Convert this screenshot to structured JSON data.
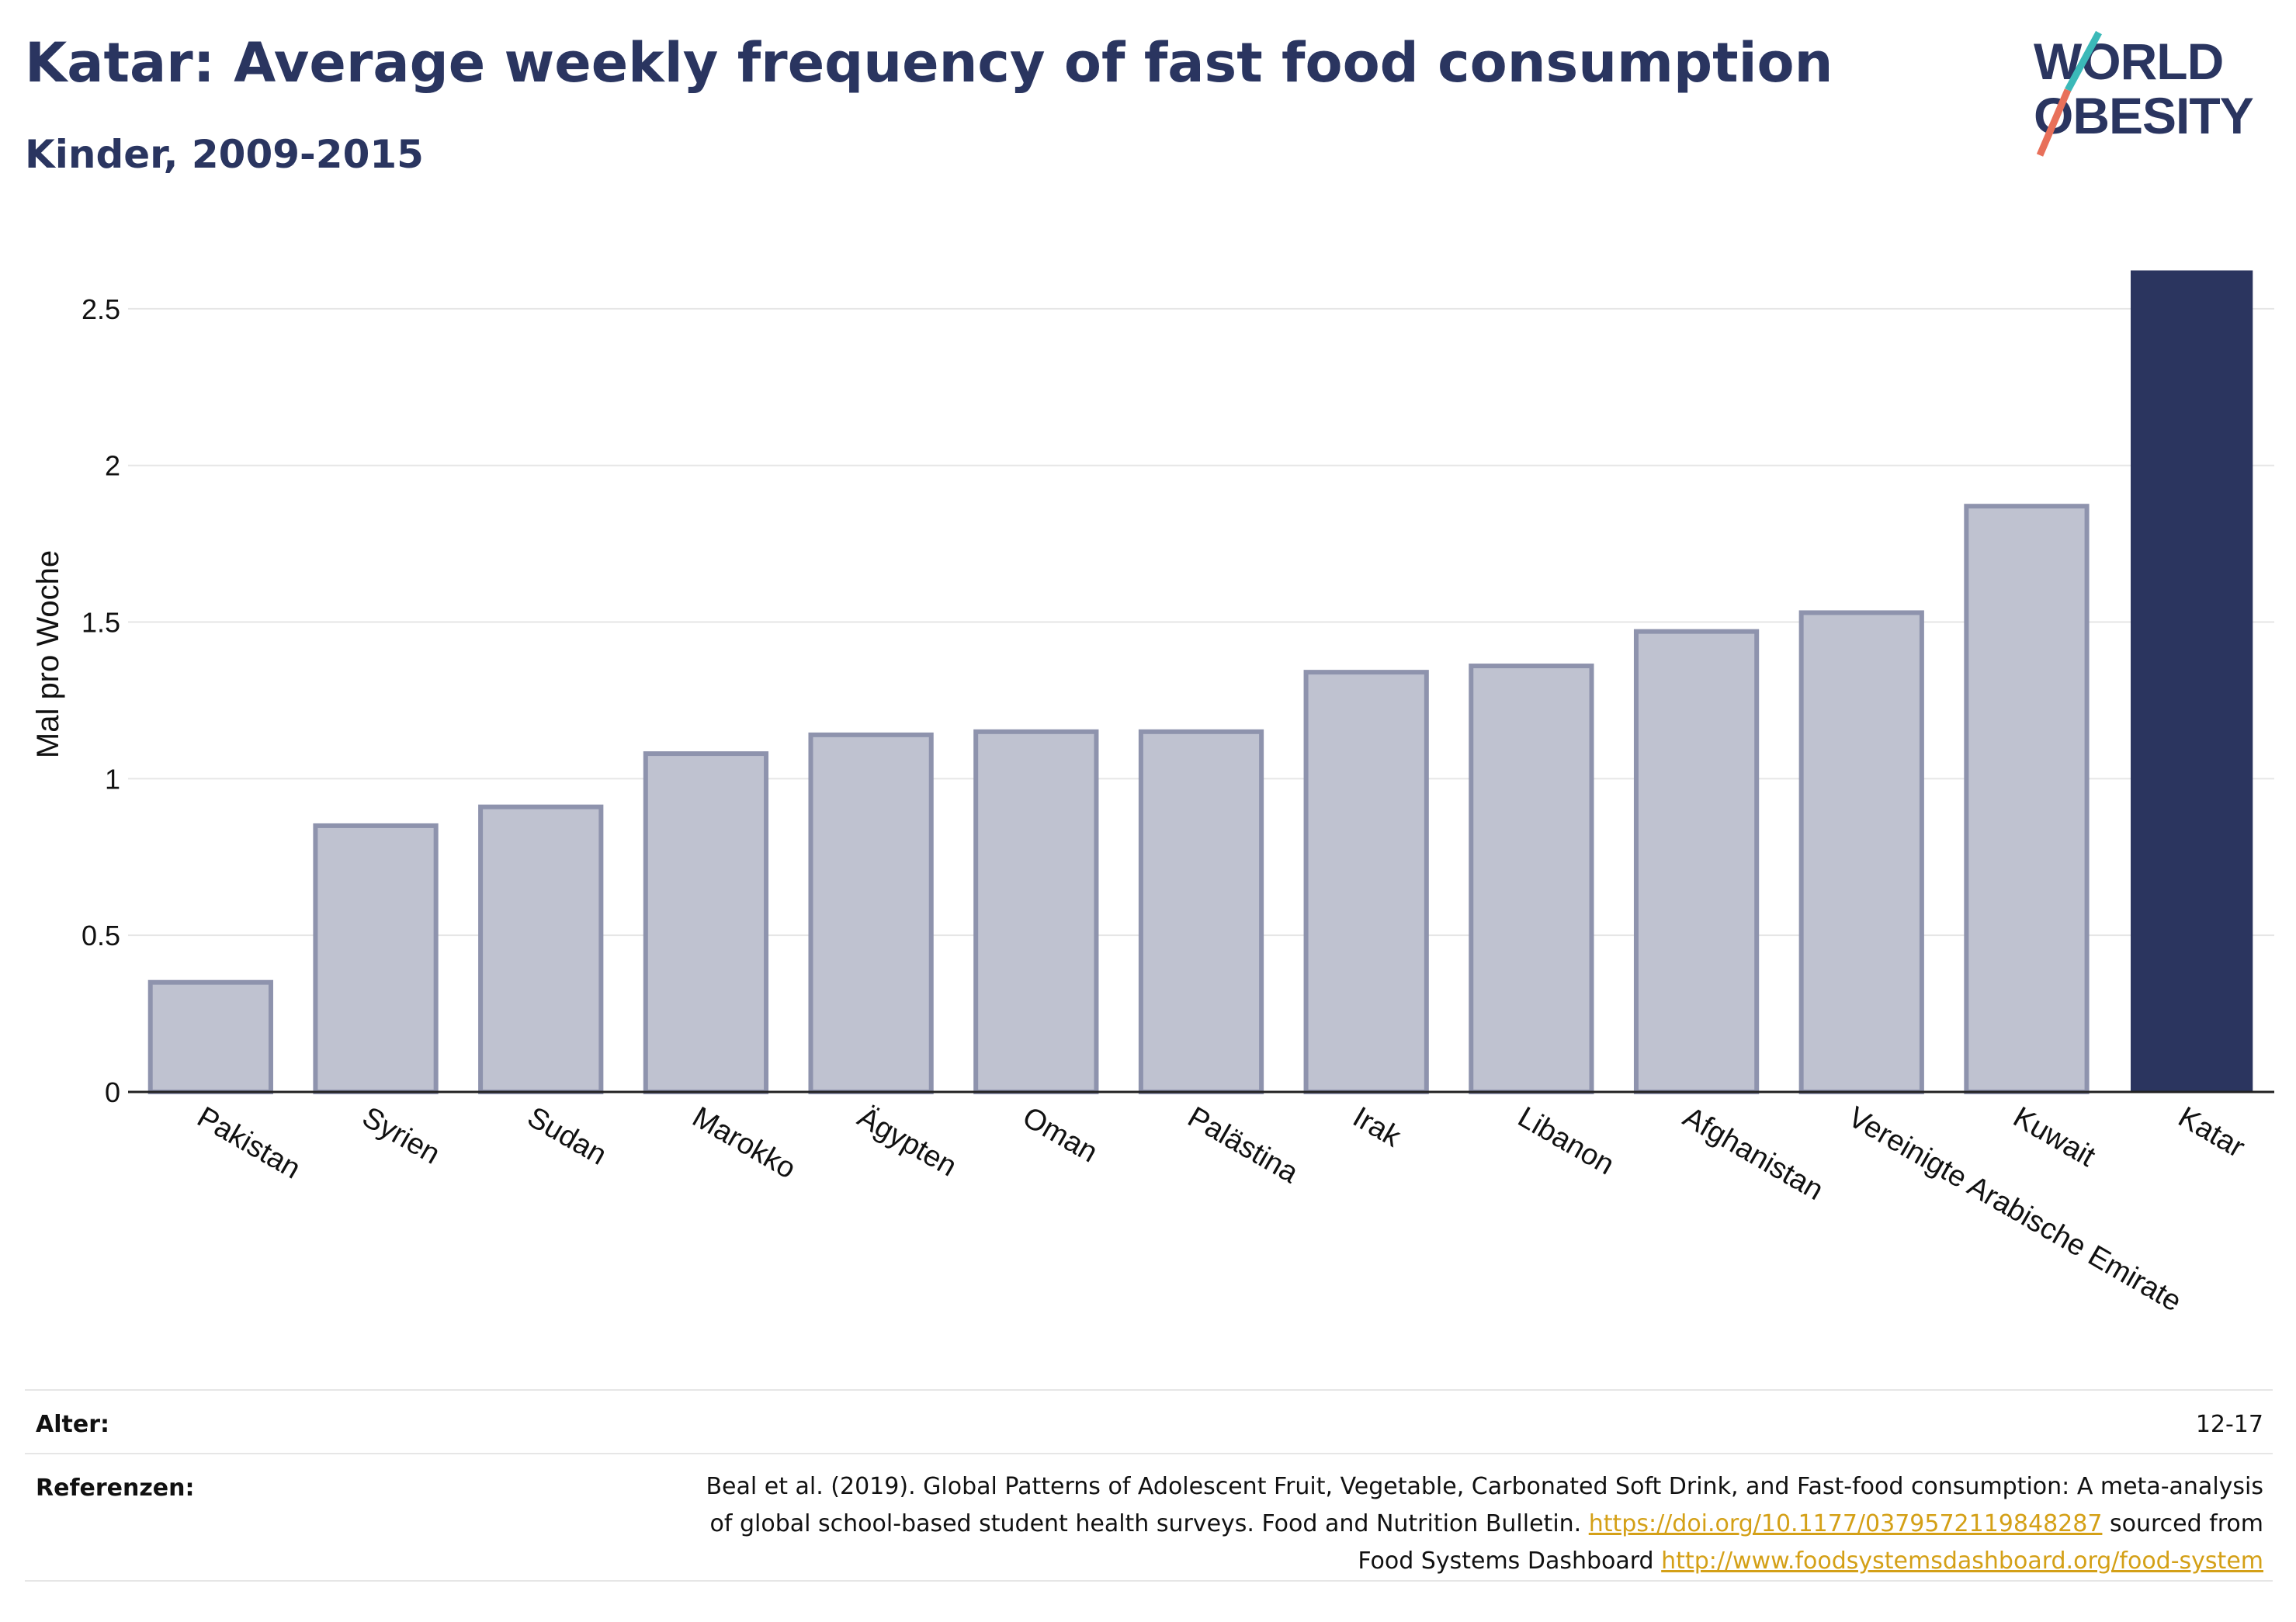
{
  "header": {
    "title": "Katar: Average weekly frequency of fast food consumption",
    "subtitle": "Kinder, 2009-2015"
  },
  "logo": {
    "line1": "WORLD",
    "line2": "OBESITY"
  },
  "chart_data": {
    "type": "bar",
    "categories": [
      "Pakistan",
      "Syrien",
      "Sudan",
      "Marokko",
      "Ägypten",
      "Oman",
      "Palästina",
      "Irak",
      "Libanon",
      "Afghanistan",
      "Vereinigte Arabische Emirate",
      "Kuwait",
      "Katar"
    ],
    "values": [
      0.35,
      0.85,
      0.91,
      1.08,
      1.14,
      1.15,
      1.15,
      1.34,
      1.36,
      1.47,
      1.53,
      1.87,
      2.62
    ],
    "highlight": "Katar",
    "ylabel": "Mal pro Woche",
    "ylim": [
      0,
      2.75
    ],
    "yticks": [
      0,
      0.5,
      1,
      1.5,
      2,
      2.5
    ],
    "ytick_labels": [
      "0",
      "0.5",
      "1",
      "1.5",
      "2",
      "2.5"
    ],
    "grid": true,
    "colors": {
      "bar": "#bfc2d0",
      "bar_edge": "#8e93ad",
      "highlight": "#2b355f"
    }
  },
  "footer": {
    "age_label": "Alter:",
    "age_value": "12-17",
    "refs_label": "Referenzen:",
    "refs_text_1": "Beal et al. (2019). Global Patterns of Adolescent Fruit, Vegetable, Carbonated Soft Drink, and Fast-food consumption: A meta-analysis",
    "refs_text_2": "of global school-based student health surveys. Food and Nutrition Bulletin.",
    "refs_link_1": "https://doi.org/10.1177/0379572119848287",
    "refs_text_3": "sourced from",
    "refs_text_4": "Food Systems Dashboard",
    "refs_link_2": "http://www.foodsystemsdashboard.org/food-system"
  }
}
